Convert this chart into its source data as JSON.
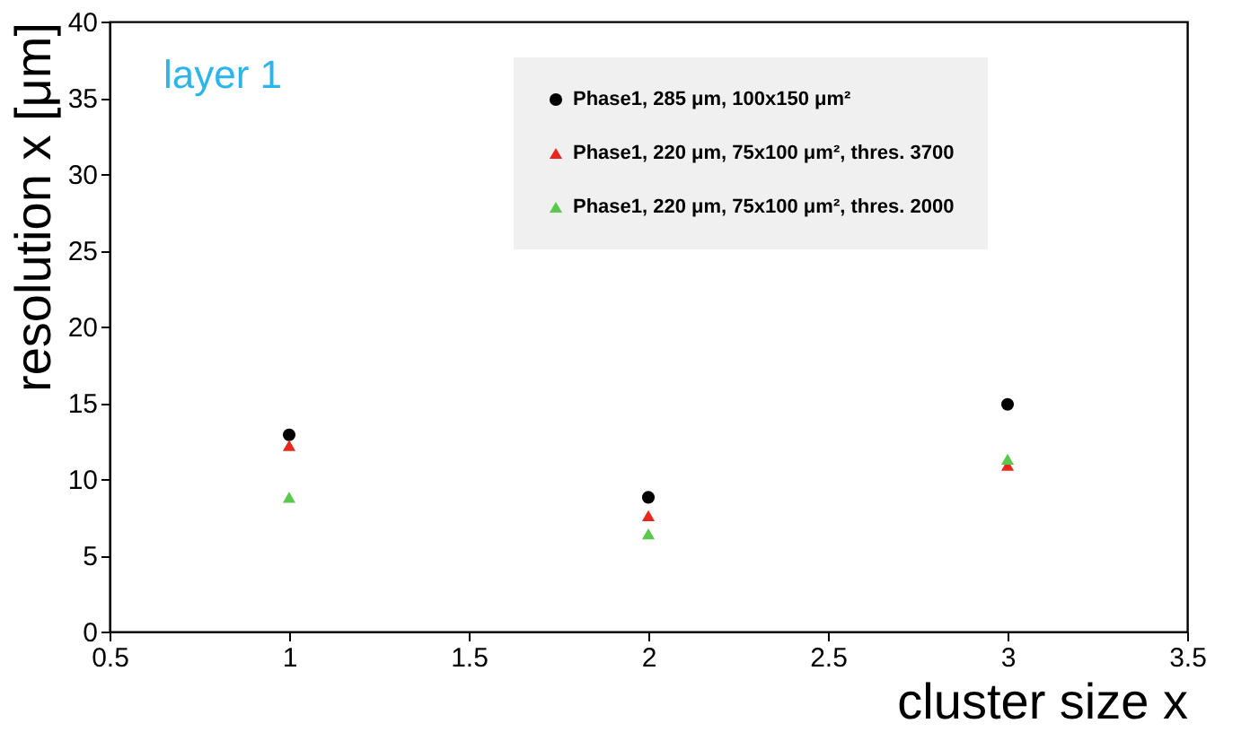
{
  "chart_data": {
    "type": "scatter",
    "xlabel": "cluster size x",
    "ylabel": "resolution x [μm]",
    "x": [
      1,
      2,
      3
    ],
    "series": [
      {
        "name": "Phase1, 285 μm, 100x150 μm²",
        "color": "#000000",
        "marker": "circle",
        "values": [
          12.9,
          8.8,
          14.9
        ]
      },
      {
        "name": "Phase1, 220 μm, 75x100 μm², thres. 3700",
        "color": "#e8261c",
        "marker": "triangle",
        "values": [
          12.2,
          7.6,
          10.9
        ]
      },
      {
        "name": "Phase1, 220 μm, 75x100 μm², thres. 2000",
        "color": "#5ac84a",
        "marker": "triangle",
        "values": [
          8.8,
          6.4,
          11.3
        ]
      }
    ],
    "annotations": [
      "layer 1"
    ],
    "xlim": [
      0.5,
      3.5
    ],
    "xticks": [
      0.5,
      1,
      1.5,
      2,
      2.5,
      3,
      3.5
    ],
    "ylim": [
      0,
      40
    ],
    "yticks": [
      0,
      5,
      10,
      15,
      20,
      25,
      30,
      35,
      40
    ],
    "grid": false,
    "legend": "top right"
  }
}
